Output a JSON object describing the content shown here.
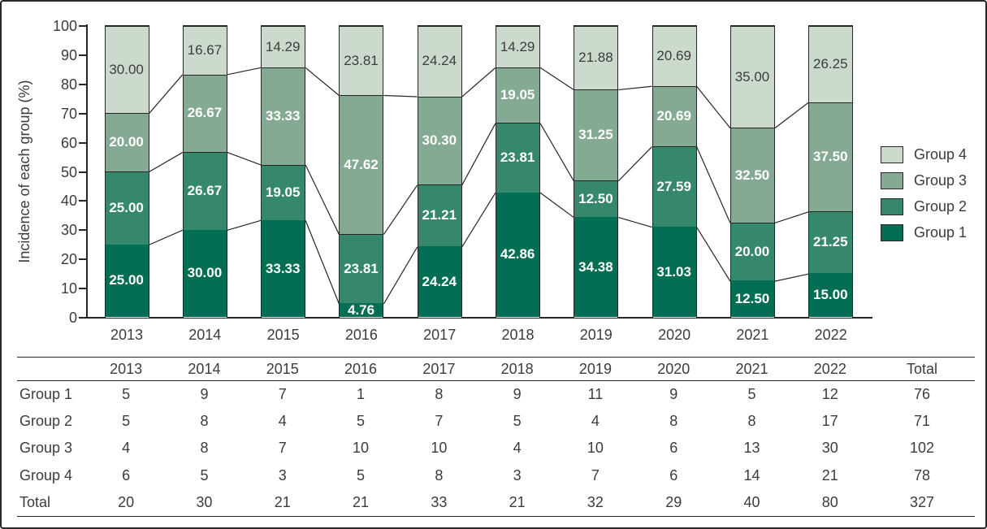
{
  "chart_data": {
    "type": "bar",
    "stacked": true,
    "title": "",
    "ylabel": "Incidence of each group (%)",
    "xlabel": "",
    "ylim": [
      0,
      100
    ],
    "yticks": [
      0,
      10,
      20,
      30,
      40,
      50,
      60,
      70,
      80,
      90,
      100
    ],
    "grid": false,
    "categories": [
      "2013",
      "2014",
      "2015",
      "2016",
      "2017",
      "2018",
      "2019",
      "2020",
      "2021",
      "2022"
    ],
    "series": [
      {
        "name": "Group 1",
        "color": "#046e54",
        "label_color": "#ffffff",
        "label_bold": true,
        "values": [
          25.0,
          30.0,
          33.33,
          4.76,
          24.24,
          42.86,
          34.38,
          31.03,
          12.5,
          15.0
        ],
        "labels": [
          "25.00",
          "30.00",
          "33.33",
          "4.76",
          "24.24",
          "42.86",
          "34.38",
          "31.03",
          "12.50",
          "15.00"
        ]
      },
      {
        "name": "Group 2",
        "color": "#36886d",
        "label_color": "#ffffff",
        "label_bold": true,
        "values": [
          25.0,
          26.67,
          19.05,
          23.81,
          21.21,
          23.81,
          12.5,
          27.59,
          20.0,
          21.25
        ],
        "labels": [
          "25.00",
          "26.67",
          "19.05",
          "23.81",
          "21.21",
          "23.81",
          "12.50",
          "27.59",
          "20.00",
          "21.25"
        ]
      },
      {
        "name": "Group 3",
        "color": "#84aa94",
        "label_color": "#ffffff",
        "label_bold": true,
        "values": [
          20.0,
          26.67,
          33.33,
          47.62,
          30.3,
          19.05,
          31.25,
          20.69,
          32.5,
          37.5
        ],
        "labels": [
          "20.00",
          "26.67",
          "33.33",
          "47.62",
          "30.30",
          "19.05",
          "31.25",
          "20.69",
          "32.50",
          "37.50"
        ]
      },
      {
        "name": "Group 4",
        "color": "#ccd9cd",
        "label_color": "#3c3c3c",
        "label_bold": false,
        "values": [
          30.0,
          16.67,
          14.29,
          23.81,
          24.24,
          14.29,
          21.88,
          20.69,
          35.0,
          26.25
        ],
        "labels": [
          "30.00",
          "16.67",
          "14.29",
          "23.81",
          "24.24",
          "14.29",
          "21.88",
          "20.69",
          "35.00",
          "26.25"
        ]
      }
    ],
    "legend": {
      "position": "right",
      "entries": [
        "Group 4",
        "Group 3",
        "Group 2",
        "Group 1"
      ]
    },
    "connector_lines": true
  },
  "table": {
    "col_headers": [
      "",
      "2013",
      "2014",
      "2015",
      "2016",
      "2017",
      "2018",
      "2019",
      "2020",
      "2021",
      "2022",
      "Total"
    ],
    "rows": [
      {
        "label": "Group 1",
        "values": [
          "5",
          "9",
          "7",
          "1",
          "8",
          "9",
          "11",
          "9",
          "5",
          "12",
          "76"
        ]
      },
      {
        "label": "Group 2",
        "values": [
          "5",
          "8",
          "4",
          "5",
          "7",
          "5",
          "4",
          "8",
          "8",
          "17",
          "71"
        ]
      },
      {
        "label": "Group 3",
        "values": [
          "4",
          "8",
          "7",
          "10",
          "10",
          "4",
          "10",
          "6",
          "13",
          "30",
          "102"
        ]
      },
      {
        "label": "Group 4",
        "values": [
          "6",
          "5",
          "3",
          "5",
          "8",
          "3",
          "7",
          "6",
          "14",
          "21",
          "78"
        ]
      },
      {
        "label": "Total",
        "values": [
          "20",
          "30",
          "21",
          "21",
          "33",
          "21",
          "32",
          "29",
          "40",
          "80",
          "327"
        ]
      }
    ]
  },
  "colors": {
    "axis": "#262626",
    "text": "#3c3c3c",
    "frame_border": "#2b2627"
  }
}
